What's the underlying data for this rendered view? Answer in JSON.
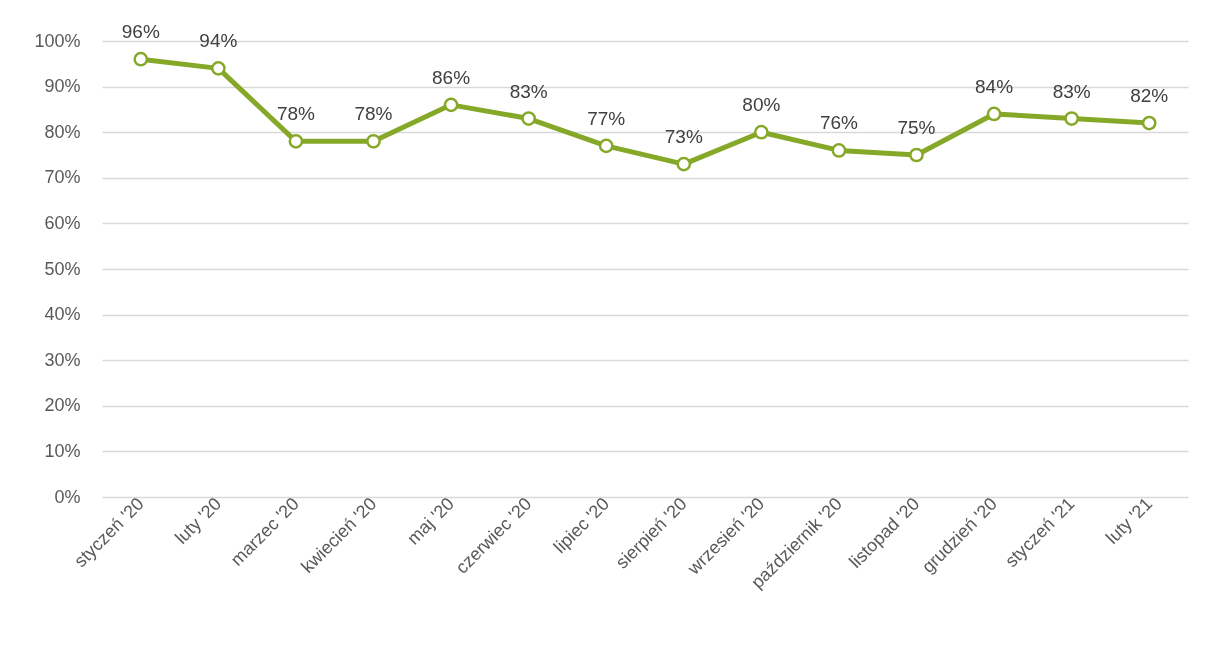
{
  "chart_data": {
    "type": "line",
    "categories": [
      "styczeń '20",
      "luty '20",
      "marzec '20",
      "kwiecień '20",
      "maj '20",
      "czerwiec '20",
      "lipiec '20",
      "sierpień '20",
      "wrzesień '20",
      "październik '20",
      "listopad '20",
      "grudzień '20",
      "styczeń '21",
      "luty '21"
    ],
    "series": [
      {
        "color": "#86a828",
        "values": [
          96,
          94,
          78,
          78,
          86,
          83,
          77,
          73,
          80,
          76,
          75,
          84,
          83,
          82
        ],
        "value_labels": [
          "96%",
          "94%",
          "78%",
          "78%",
          "86%",
          "83%",
          "77%",
          "73%",
          "80%",
          "76%",
          "75%",
          "84%",
          "83%",
          "82%"
        ]
      }
    ],
    "ylim": [
      0,
      100
    ],
    "yticks": [
      {
        "value": 0,
        "label": "0%"
      },
      {
        "value": 10,
        "label": "10%"
      },
      {
        "value": 20,
        "label": "20%"
      },
      {
        "value": 30,
        "label": "30%"
      },
      {
        "value": 40,
        "label": "40%"
      },
      {
        "value": 50,
        "label": "50%"
      },
      {
        "value": 60,
        "label": "60%"
      },
      {
        "value": 70,
        "label": "70%"
      },
      {
        "value": 80,
        "label": "80%"
      },
      {
        "value": 90,
        "label": "90%"
      },
      {
        "value": 100,
        "label": "100%"
      }
    ],
    "grid": "y",
    "marker": "circle",
    "line_style": "solid"
  }
}
